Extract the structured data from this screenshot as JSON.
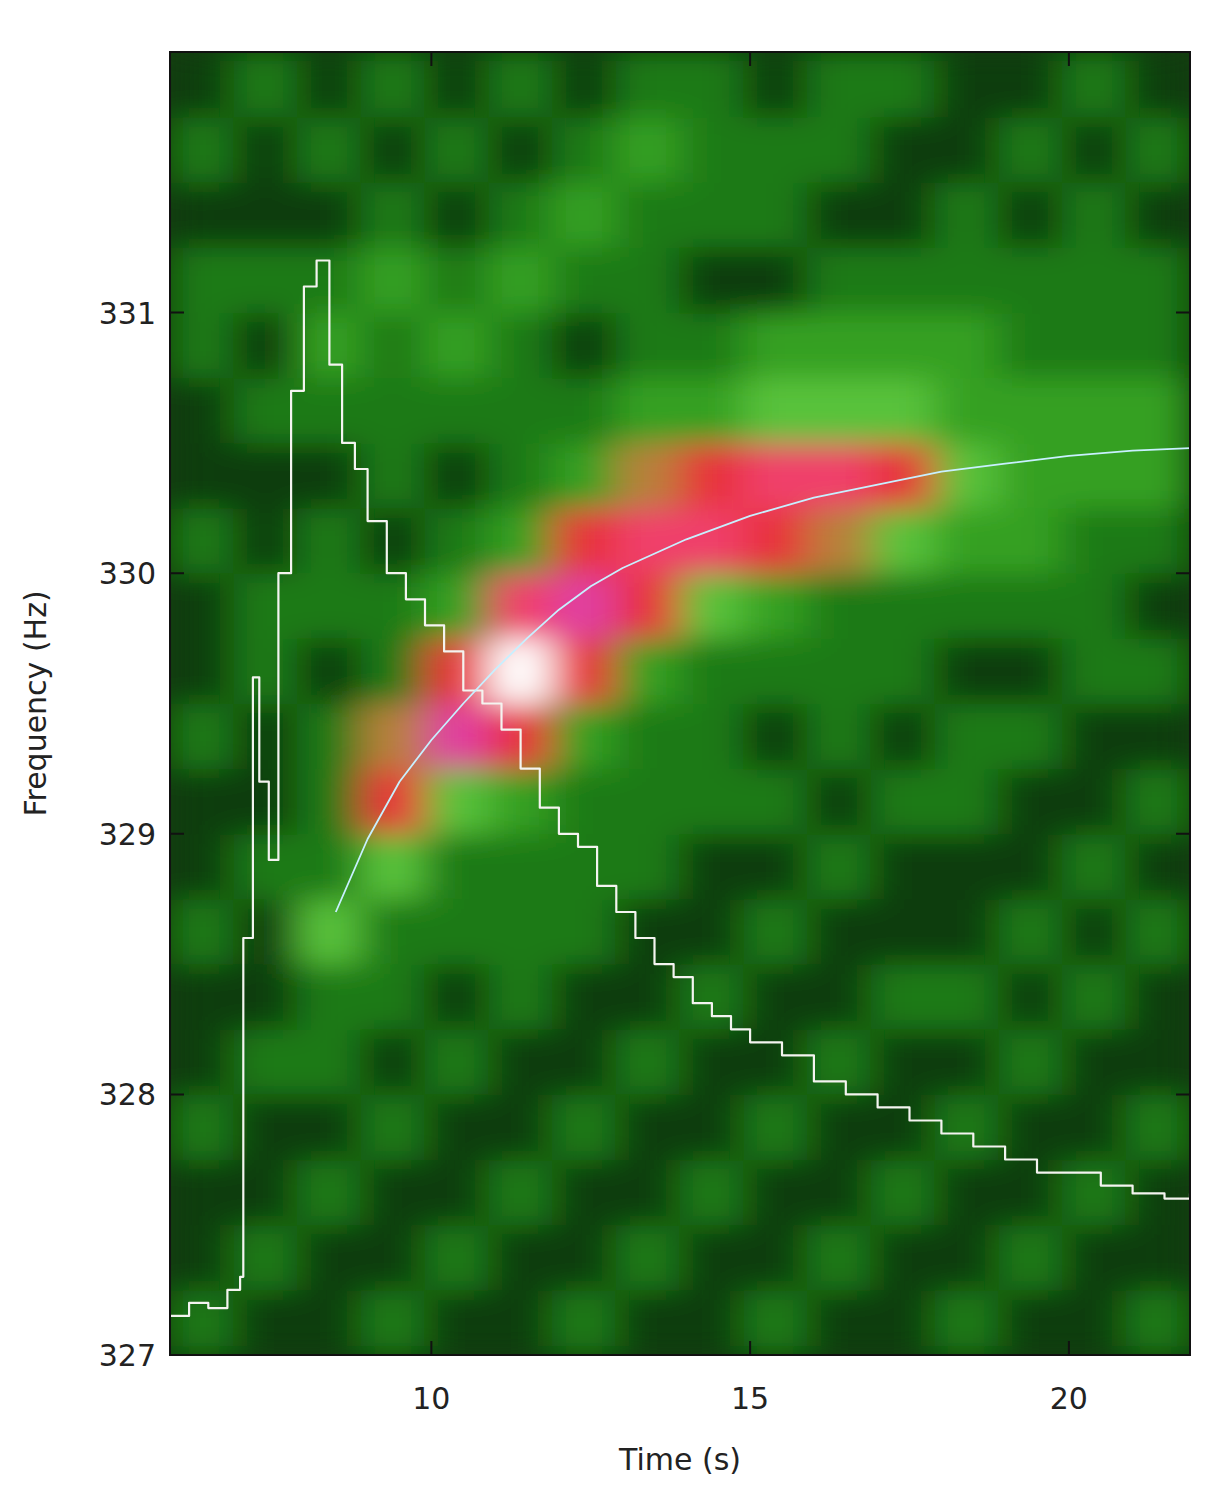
{
  "chart_data": {
    "type": "heatmap",
    "x_label": "Time (s)",
    "y_label": "Frequency (Hz)",
    "xlim": [
      5.9,
      21.9
    ],
    "ylim": [
      327,
      332
    ],
    "xticks": [
      10,
      15,
      20
    ],
    "yticks": [
      327,
      328,
      329,
      330,
      331
    ],
    "cells": {
      "x_edges": [
        5.9,
        6.9,
        7.9,
        8.9,
        9.9,
        10.9,
        11.9,
        12.9,
        13.9,
        14.9,
        15.9,
        16.9,
        17.9,
        18.9,
        19.9,
        20.9,
        21.9
      ],
      "y_edges": [
        327,
        327.25,
        327.5,
        327.75,
        328,
        328.25,
        328.5,
        328.75,
        329,
        329.25,
        329.5,
        329.75,
        330,
        330.25,
        330.5,
        330.75,
        331,
        331.25,
        331.5,
        331.75,
        332
      ],
      "zlim": [
        0,
        10
      ],
      "values": [
        [
          2,
          1,
          1,
          2,
          1,
          1,
          2,
          1,
          1,
          2,
          1,
          1,
          2,
          1,
          1,
          2
        ],
        [
          1,
          2,
          1,
          1,
          2,
          1,
          1,
          2,
          1,
          1,
          2,
          1,
          1,
          2,
          1,
          1
        ],
        [
          1,
          1,
          2,
          1,
          1,
          2,
          1,
          1,
          2,
          1,
          1,
          2,
          1,
          1,
          2,
          1
        ],
        [
          2,
          1,
          1,
          2,
          1,
          1,
          2,
          1,
          1,
          2,
          1,
          1,
          2,
          1,
          1,
          2
        ],
        [
          1,
          2,
          2,
          1,
          2,
          1,
          1,
          2,
          1,
          1,
          2,
          1,
          1,
          2,
          1,
          1
        ],
        [
          1,
          1,
          2,
          2,
          1,
          2,
          1,
          1,
          2,
          1,
          1,
          2,
          2,
          1,
          2,
          1
        ],
        [
          2,
          1,
          4,
          2,
          2,
          2,
          2,
          1,
          1,
          2,
          1,
          1,
          1,
          2,
          1,
          2
        ],
        [
          1,
          2,
          2,
          4,
          2,
          2,
          2,
          2,
          1,
          1,
          2,
          1,
          1,
          1,
          2,
          1
        ],
        [
          1,
          1,
          2,
          6,
          4,
          3,
          2,
          2,
          2,
          2,
          1,
          2,
          2,
          1,
          1,
          2
        ],
        [
          2,
          1,
          2,
          5,
          8,
          6,
          3,
          2,
          2,
          1,
          2,
          1,
          2,
          2,
          1,
          1
        ],
        [
          1,
          2,
          1,
          2,
          6,
          10,
          6,
          3,
          2,
          2,
          2,
          2,
          1,
          1,
          2,
          2
        ],
        [
          1,
          2,
          2,
          2,
          3,
          7,
          8,
          6,
          4,
          3,
          2,
          2,
          2,
          2,
          2,
          1
        ],
        [
          2,
          1,
          2,
          1,
          2,
          3,
          6,
          7,
          7,
          6,
          5,
          4,
          3,
          3,
          2,
          2
        ],
        [
          1,
          1,
          1,
          2,
          1,
          2,
          3,
          5,
          6,
          7,
          7,
          6,
          4,
          3,
          3,
          3
        ],
        [
          1,
          2,
          2,
          2,
          2,
          2,
          2,
          3,
          3,
          4,
          4,
          4,
          3,
          3,
          3,
          3
        ],
        [
          2,
          1,
          3,
          2,
          3,
          2,
          1,
          2,
          2,
          3,
          3,
          3,
          3,
          2,
          2,
          2
        ],
        [
          2,
          2,
          2,
          3,
          2,
          3,
          2,
          2,
          1,
          1,
          2,
          2,
          2,
          2,
          2,
          2
        ],
        [
          1,
          1,
          1,
          2,
          1,
          2,
          3,
          2,
          2,
          2,
          1,
          1,
          2,
          1,
          2,
          1
        ],
        [
          2,
          1,
          2,
          1,
          2,
          1,
          2,
          3,
          2,
          2,
          2,
          1,
          1,
          2,
          1,
          2
        ],
        [
          1,
          2,
          1,
          2,
          1,
          2,
          1,
          2,
          2,
          1,
          2,
          2,
          1,
          1,
          2,
          1
        ]
      ]
    },
    "series": [
      {
        "type": "line",
        "line_style": "step",
        "color": "#f4f4f0",
        "x": [
          5.9,
          6.2,
          6.5,
          6.8,
          7.0,
          7.05,
          7.2,
          7.3,
          7.45,
          7.6,
          7.8,
          8.0,
          8.2,
          8.4,
          8.6,
          8.8,
          9.0,
          9.3,
          9.6,
          9.9,
          10.2,
          10.5,
          10.8,
          11.1,
          11.4,
          11.7,
          12.0,
          12.3,
          12.6,
          12.9,
          13.2,
          13.5,
          13.8,
          14.1,
          14.4,
          14.7,
          15.0,
          15.5,
          16.0,
          16.5,
          17.0,
          17.5,
          18.0,
          18.5,
          19.0,
          19.5,
          20.0,
          20.5,
          21.0,
          21.5,
          21.9
        ],
        "values": [
          327.15,
          327.2,
          327.18,
          327.25,
          327.3,
          328.6,
          329.6,
          329.2,
          328.9,
          330.0,
          330.7,
          331.1,
          331.2,
          330.8,
          330.5,
          330.4,
          330.2,
          330.0,
          329.9,
          329.8,
          329.7,
          329.55,
          329.5,
          329.4,
          329.25,
          329.1,
          329.0,
          328.95,
          328.8,
          328.7,
          328.6,
          328.5,
          328.45,
          328.35,
          328.3,
          328.25,
          328.2,
          328.15,
          328.05,
          328.0,
          327.95,
          327.9,
          327.85,
          327.8,
          327.75,
          327.7,
          327.7,
          327.65,
          327.62,
          327.6,
          327.62
        ]
      },
      {
        "type": "line",
        "line_style": "solid",
        "color": "#c8f0ff",
        "x": [
          8.5,
          9,
          9.5,
          10,
          10.5,
          11,
          11.5,
          12,
          12.5,
          13,
          14,
          15,
          16,
          17,
          18,
          19,
          20,
          21,
          21.9
        ],
        "values": [
          328.7,
          328.98,
          329.2,
          329.36,
          329.5,
          329.63,
          329.75,
          329.86,
          329.95,
          330.02,
          330.13,
          330.22,
          330.29,
          330.34,
          330.39,
          330.42,
          330.45,
          330.47,
          330.48
        ]
      }
    ]
  }
}
